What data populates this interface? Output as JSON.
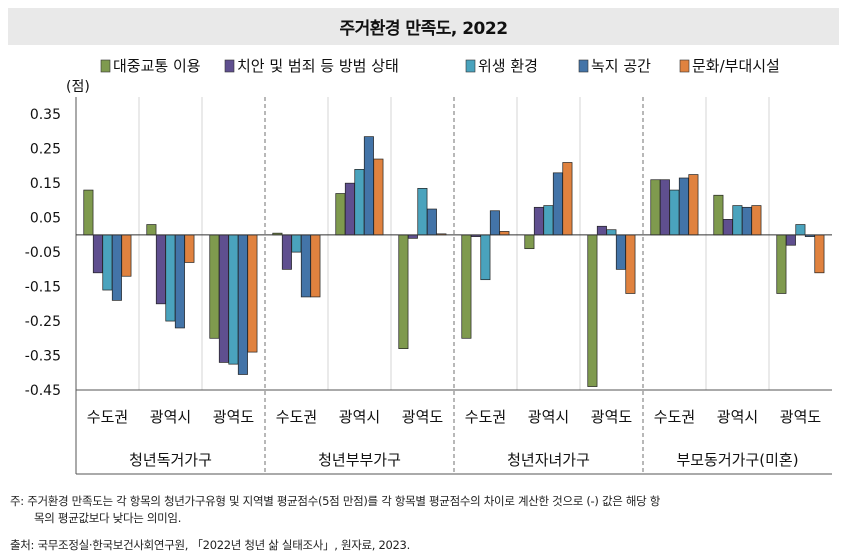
{
  "chart_data": {
    "type": "bar",
    "title": "주거환경 만족도, 2022",
    "ylabel": "(점)",
    "ylim": [
      -0.45,
      0.4
    ],
    "yticks": [
      "0.35",
      "0.25",
      "0.15",
      "0.05",
      "-0.05",
      "-0.15",
      "-0.25",
      "-0.35",
      "-0.45"
    ],
    "ytick_values": [
      0.35,
      0.25,
      0.15,
      0.05,
      -0.05,
      -0.15,
      -0.25,
      -0.35,
      -0.45
    ],
    "legend_position": "top",
    "groups": [
      {
        "label": "청년독거가구",
        "categories": [
          "수도권",
          "광역시",
          "광역도"
        ]
      },
      {
        "label": "청년부부가구",
        "categories": [
          "수도권",
          "광역시",
          "광역도"
        ]
      },
      {
        "label": "청년자녀가구",
        "categories": [
          "수도권",
          "광역시",
          "광역도"
        ]
      },
      {
        "label": "부모동거가구(미혼)",
        "categories": [
          "수도권",
          "광역시",
          "광역도"
        ]
      }
    ],
    "series": [
      {
        "name": "대중교통 이용",
        "color": "#7f9a4e",
        "values": [
          0.13,
          0.03,
          -0.3,
          0.005,
          0.12,
          -0.33,
          -0.3,
          -0.04,
          -0.44,
          0.16,
          0.115,
          -0.17
        ]
      },
      {
        "name": "치안 및 범죄 등 방범 상태",
        "color": "#5f4f8f",
        "values": [
          -0.11,
          -0.2,
          -0.37,
          -0.1,
          0.15,
          -0.01,
          -0.005,
          0.08,
          0.025,
          0.16,
          0.045,
          -0.03
        ]
      },
      {
        "name": "위생 환경",
        "color": "#4aa3bd",
        "values": [
          -0.16,
          -0.25,
          -0.375,
          -0.05,
          0.19,
          0.135,
          -0.13,
          0.085,
          0.015,
          0.13,
          0.085,
          0.03
        ]
      },
      {
        "name": "녹지 공간",
        "color": "#4374a8",
        "values": [
          -0.19,
          -0.27,
          -0.405,
          -0.18,
          0.285,
          0.075,
          0.07,
          0.18,
          -0.1,
          0.165,
          0.08,
          -0.005
        ]
      },
      {
        "name": "문화/부대시설",
        "color": "#e0823f",
        "values": [
          -0.12,
          -0.08,
          -0.34,
          -0.18,
          0.22,
          0.003,
          0.01,
          0.21,
          -0.17,
          0.175,
          0.085,
          -0.11
        ]
      }
    ]
  },
  "notes": {
    "line1": "주: 주거환경 만족도는 각 항목의 청년가구유형 및 지역별 평균점수(5점 만점)를 각 항목별 평균점수의 차이로 계산한 것으로 (-) 값은 해당 항",
    "line2": "목의 평균값보다 낮다는 의미임.",
    "source": "출처: 국무조정실·한국보건사회연구원, 「2022년 청년 삶 실태조사」, 원자료, 2023."
  }
}
